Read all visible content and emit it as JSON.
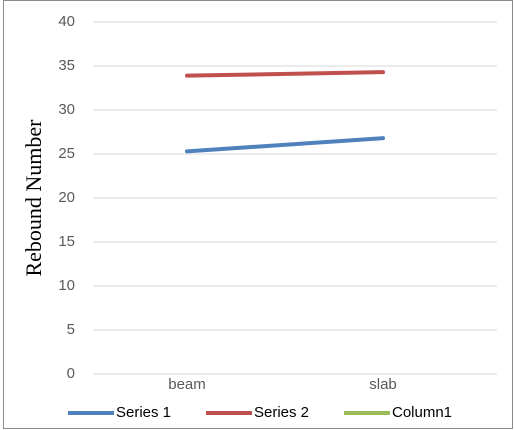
{
  "chart_data": {
    "type": "line",
    "y_label": "Rebound Number",
    "categories": [
      "beam",
      "slab"
    ],
    "series": [
      {
        "name": "Series 1",
        "color": "#4f81bd",
        "values": [
          25.3,
          26.8
        ]
      },
      {
        "name": "Series 2",
        "color": "#c0504d",
        "values": [
          33.9,
          34.3
        ]
      },
      {
        "name": "Column1",
        "color": "#9bbb59",
        "values": [
          null,
          null
        ]
      }
    ],
    "ylim": [
      0,
      40
    ],
    "yticks": [
      0,
      5,
      10,
      15,
      20,
      25,
      30,
      35,
      40
    ],
    "grid": true,
    "legend": "bottom"
  }
}
